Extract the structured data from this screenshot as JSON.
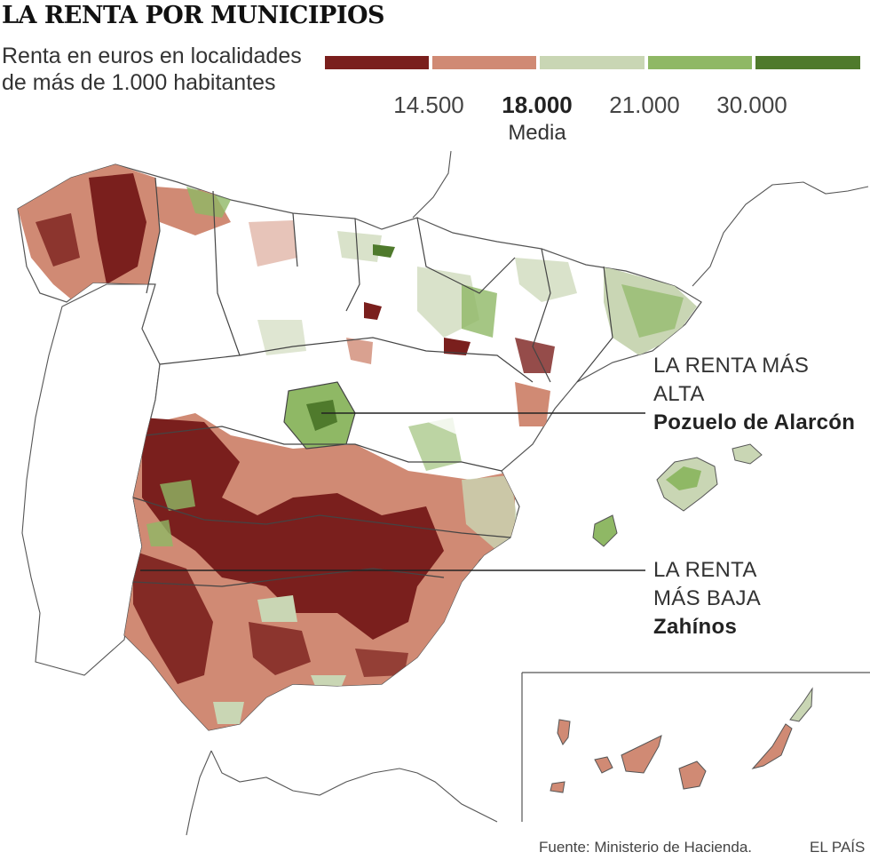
{
  "title": "LA RENTA POR MUNICIPIOS",
  "subtitle": "Renta en euros en localidades de más de 1.000 habitantes",
  "legend": {
    "colors": [
      "#7a1f1d",
      "#d08a74",
      "#c9d6b4",
      "#8fb865",
      "#4f7a2c"
    ],
    "ticks": [
      "14.500",
      "18.000",
      "21.000",
      "30.000"
    ],
    "media_label": "Media"
  },
  "annotations": {
    "highest": {
      "line1": "LA RENTA MÁS",
      "line2": "ALTA",
      "place": "Pozuelo de Alarcón"
    },
    "lowest": {
      "line1": "LA RENTA",
      "line2": "MÁS BAJA",
      "place": "Zahínos"
    }
  },
  "footer": {
    "source": "Fuente: Ministerio de Hacienda.",
    "brand": "EL PAÍS"
  }
}
